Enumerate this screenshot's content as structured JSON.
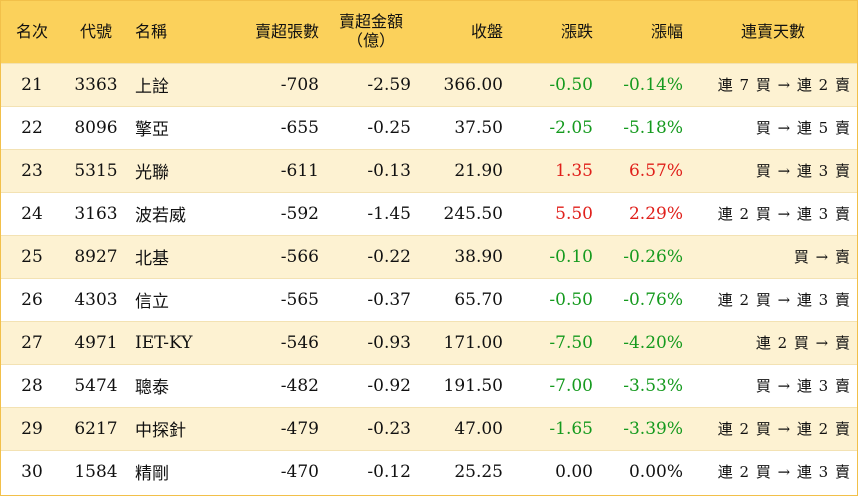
{
  "headers": {
    "rank": "名次",
    "code": "代號",
    "name": "名稱",
    "net_lots": "賣超張數",
    "net_amount_l1": "賣超金額",
    "net_amount_l2": "（億）",
    "close": "收盤",
    "change": "漲跌",
    "change_pct": "漲幅",
    "streak": "連賣天數"
  },
  "rows": [
    {
      "rank": "21",
      "code": "3363",
      "name": "上詮",
      "net_lots": "-708",
      "net_amount": "-2.59",
      "close": "366.00",
      "change": "-0.50",
      "change_pct": "-0.14%",
      "direction": "down",
      "streak": "連 7 買 → 連 2 賣"
    },
    {
      "rank": "22",
      "code": "8096",
      "name": "擎亞",
      "net_lots": "-655",
      "net_amount": "-0.25",
      "close": "37.50",
      "change": "-2.05",
      "change_pct": "-5.18%",
      "direction": "down",
      "streak": "買 → 連 5 賣"
    },
    {
      "rank": "23",
      "code": "5315",
      "name": "光聯",
      "net_lots": "-611",
      "net_amount": "-0.13",
      "close": "21.90",
      "change": "1.35",
      "change_pct": "6.57%",
      "direction": "up",
      "streak": "買 → 連 3 賣"
    },
    {
      "rank": "24",
      "code": "3163",
      "name": "波若威",
      "net_lots": "-592",
      "net_amount": "-1.45",
      "close": "245.50",
      "change": "5.50",
      "change_pct": "2.29%",
      "direction": "up",
      "streak": "連 2 買 → 連 3 賣"
    },
    {
      "rank": "25",
      "code": "8927",
      "name": "北基",
      "net_lots": "-566",
      "net_amount": "-0.22",
      "close": "38.90",
      "change": "-0.10",
      "change_pct": "-0.26%",
      "direction": "down",
      "streak": "買 → 賣"
    },
    {
      "rank": "26",
      "code": "4303",
      "name": "信立",
      "net_lots": "-565",
      "net_amount": "-0.37",
      "close": "65.70",
      "change": "-0.50",
      "change_pct": "-0.76%",
      "direction": "down",
      "streak": "連 2 買 → 連 3 賣"
    },
    {
      "rank": "27",
      "code": "4971",
      "name": "IET-KY",
      "net_lots": "-546",
      "net_amount": "-0.93",
      "close": "171.00",
      "change": "-7.50",
      "change_pct": "-4.20%",
      "direction": "down",
      "streak": "連 2 買 → 賣"
    },
    {
      "rank": "28",
      "code": "5474",
      "name": "聰泰",
      "net_lots": "-482",
      "net_amount": "-0.92",
      "close": "191.50",
      "change": "-7.00",
      "change_pct": "-3.53%",
      "direction": "down",
      "streak": "買 → 連 3 賣"
    },
    {
      "rank": "29",
      "code": "6217",
      "name": "中探針",
      "net_lots": "-479",
      "net_amount": "-0.23",
      "close": "47.00",
      "change": "-1.65",
      "change_pct": "-3.39%",
      "direction": "down",
      "streak": "連 2 買 → 連 2 賣"
    },
    {
      "rank": "30",
      "code": "1584",
      "name": "精剛",
      "net_lots": "-470",
      "net_amount": "-0.12",
      "close": "25.25",
      "change": "0.00",
      "change_pct": "0.00%",
      "direction": "flat",
      "streak": "連 2 買 → 連 3 賣"
    }
  ],
  "colors": {
    "header_bg": "#fbd15b",
    "alt_row_bg": "#fdf2d2",
    "up": "#e0201b",
    "down": "#159a1e"
  }
}
